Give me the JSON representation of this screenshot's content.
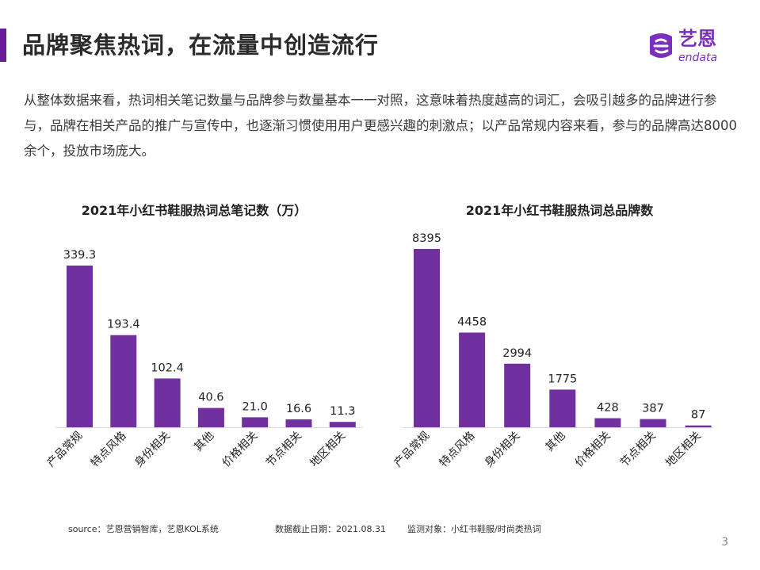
{
  "header": {
    "title": "品牌聚焦热词，在流量中创造流行",
    "accent_color": "#6a1b9a"
  },
  "logo": {
    "brand": "艺恩",
    "sub": "endata",
    "color": "#7b2fbf"
  },
  "intro": {
    "text": "从整体数据来看，热词相关笔记数量与品牌参与数量基本一一对照，这意味着热度越高的词汇，会吸引越多的品牌进行参与，品牌在相关产品的推广与宣传中，也逐渐习惯使用用户更感兴趣的刺激点；以产品常规内容来看，参与的品牌高达8000余个，投放市场庞大。"
  },
  "chart_data": [
    {
      "type": "bar",
      "title": "2021年小红书鞋服热词总笔记数（万）",
      "categories": [
        "产品常规",
        "特点风格",
        "身份相关",
        "其他",
        "价格相关",
        "节点相关",
        "地区相关"
      ],
      "values": [
        339.3,
        193.4,
        102.4,
        40.6,
        21.0,
        16.6,
        11.3
      ],
      "value_labels": [
        "339.3",
        "193.4",
        "102.4",
        "40.6",
        "21.0",
        "16.6",
        "11.3"
      ],
      "bar_color": "#7030a0",
      "ylim": [
        0,
        339.3
      ],
      "grid": false,
      "legend": "none"
    },
    {
      "type": "bar",
      "title": "2021年小红书鞋服热词总品牌数",
      "categories": [
        "产品常规",
        "特点风格",
        "身份相关",
        "其他",
        "价格相关",
        "节点相关",
        "地区相关"
      ],
      "values": [
        8395,
        4458,
        2994,
        1775,
        428,
        387,
        87
      ],
      "value_labels": [
        "8395",
        "4458",
        "2994",
        "1775",
        "428",
        "387",
        "87"
      ],
      "bar_color": "#7030a0",
      "ylim": [
        0,
        8395
      ],
      "grid": false,
      "legend": "none"
    }
  ],
  "footer": {
    "source": "source：艺恩营销智库，艺恩KOL系统",
    "date": "数据截止日期：2021.08.31",
    "target": "监测对象：小红书鞋服/时尚类热词"
  },
  "page_number": "3"
}
